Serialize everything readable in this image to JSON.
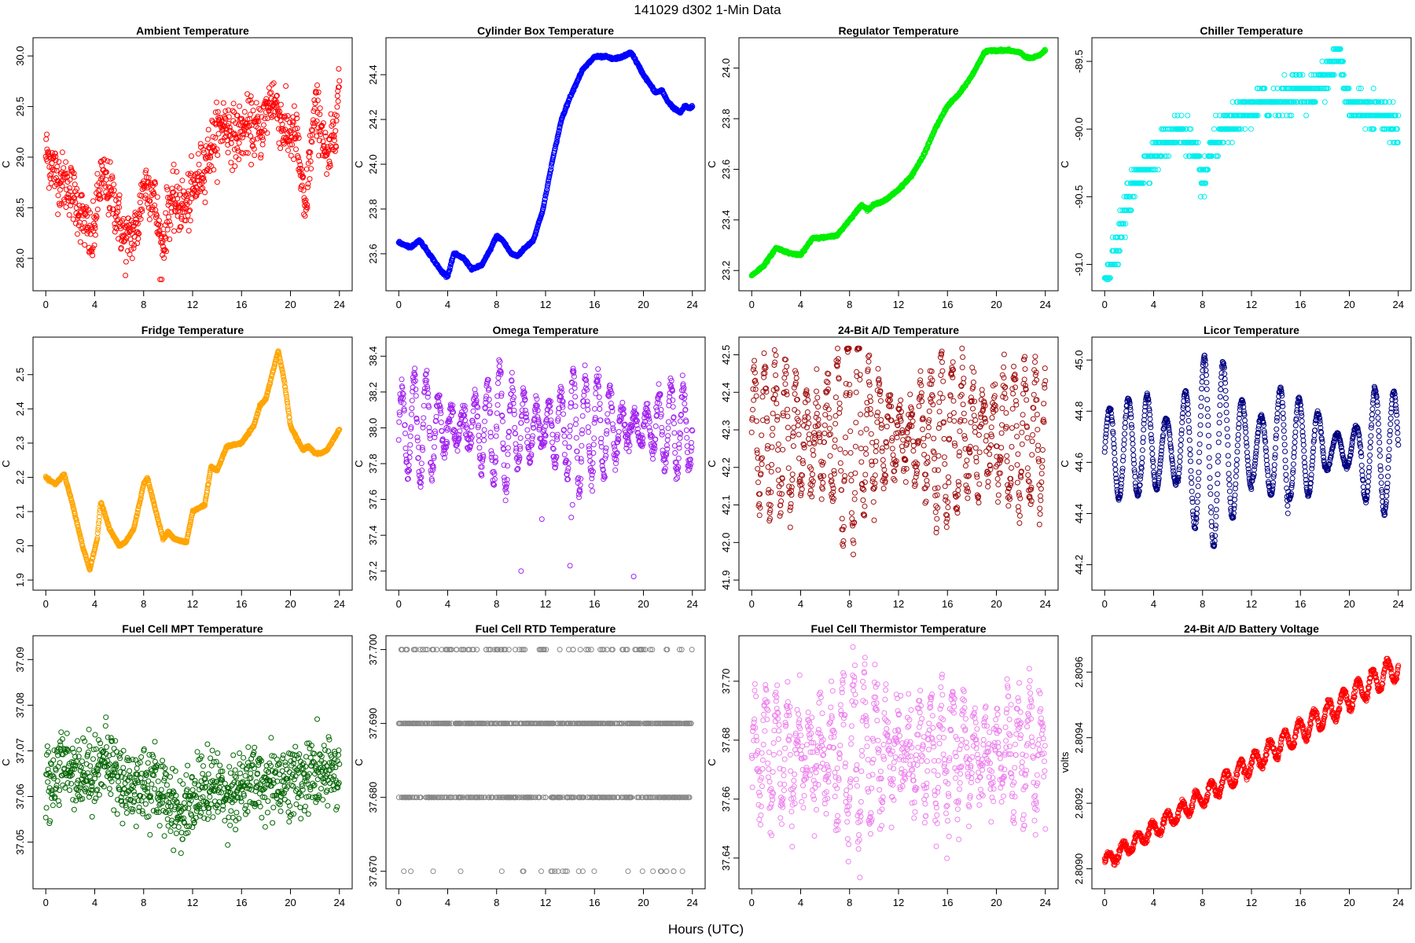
{
  "figure": {
    "title": "141029   d302   1-Min Data",
    "xlabel": "Hours (UTC)"
  },
  "chart_data": [
    {
      "type": "scatter",
      "title": "Ambient Temperature",
      "ylabel": "C",
      "color": "#ff0000",
      "xlim": [
        0,
        24
      ],
      "ylim": [
        27.78,
        30.08
      ],
      "xticks": [
        "0",
        "4",
        "8",
        "12",
        "16",
        "20",
        "24"
      ],
      "yticks": [
        "28.0",
        "28.5",
        "29.0",
        "29.5",
        "30.0"
      ],
      "ytick_values": [
        28.0,
        28.5,
        29.0,
        29.5,
        30.0
      ],
      "x": [
        0,
        1,
        2,
        3,
        3.8,
        4.5,
        5.5,
        6.5,
        7.5,
        8,
        8.8,
        9.5,
        10,
        10.5,
        11.5,
        12.5,
        13.5,
        14.5,
        15.5,
        16.5,
        17.5,
        18.5,
        19,
        19.5,
        20.5,
        21.2,
        21.5,
        22,
        22.5,
        23,
        23.5,
        24
      ],
      "y": [
        29.05,
        28.8,
        28.7,
        28.4,
        28.15,
        28.8,
        28.6,
        28.15,
        28.3,
        28.75,
        28.65,
        28.05,
        28.5,
        28.55,
        28.5,
        28.8,
        29.1,
        29.35,
        29.2,
        29.3,
        29.25,
        29.6,
        29.45,
        29.25,
        29.2,
        28.4,
        28.9,
        29.45,
        29.35,
        28.9,
        29.2,
        29.75
      ],
      "spread": 0.28
    },
    {
      "type": "scatter",
      "title": "Cylinder Box Temperature",
      "ylabel": "C",
      "color": "#0000ff",
      "xlim": [
        0,
        24
      ],
      "ylim": [
        23.48,
        24.52
      ],
      "xticks": [
        "0",
        "4",
        "8",
        "12",
        "16",
        "20",
        "24"
      ],
      "yticks": [
        "23.6",
        "23.8",
        "24.0",
        "24.2",
        "24.4"
      ],
      "ytick_values": [
        23.6,
        23.8,
        24.0,
        24.2,
        24.4
      ],
      "x": [
        0,
        1,
        1.7,
        2.5,
        3.5,
        4,
        4.5,
        5.3,
        6,
        6.8,
        7.5,
        8,
        8.5,
        9.2,
        9.7,
        10.2,
        11,
        11.8,
        12.5,
        13.3,
        14,
        15,
        16,
        17,
        17.5,
        18.3,
        19,
        19.5,
        20,
        21,
        21.5,
        22,
        22.5,
        23,
        23.4,
        23.8,
        24
      ],
      "y": [
        23.65,
        23.63,
        23.66,
        23.6,
        23.52,
        23.5,
        23.6,
        23.58,
        23.53,
        23.55,
        23.62,
        23.68,
        23.66,
        23.6,
        23.59,
        23.62,
        23.66,
        23.8,
        24.0,
        24.2,
        24.3,
        24.42,
        24.48,
        24.48,
        24.47,
        24.48,
        24.5,
        24.45,
        24.4,
        24.32,
        24.33,
        24.28,
        24.25,
        24.23,
        24.26,
        24.25,
        24.26
      ],
      "spread": 0.005
    },
    {
      "type": "scatter",
      "title": "Regulator Temperature",
      "ylabel": "C",
      "color": "#00ee00",
      "xlim": [
        0,
        24
      ],
      "ylim": [
        23.16,
        24.08
      ],
      "xticks": [
        "0",
        "4",
        "8",
        "12",
        "16",
        "20",
        "24"
      ],
      "yticks": [
        "23.2",
        "23.4",
        "23.6",
        "23.8",
        "24.0"
      ],
      "ytick_values": [
        23.2,
        23.4,
        23.6,
        23.8,
        24.0
      ],
      "x": [
        0,
        1,
        2,
        3,
        4,
        5,
        6,
        7,
        8,
        9,
        9.5,
        10,
        11,
        12,
        13,
        14,
        15,
        16,
        17,
        18,
        19,
        19.5,
        20,
        21,
        22,
        22.5,
        23,
        23.5,
        24
      ],
      "y": [
        23.18,
        23.22,
        23.29,
        23.27,
        23.26,
        23.33,
        23.33,
        23.34,
        23.4,
        23.46,
        23.44,
        23.46,
        23.48,
        23.52,
        23.57,
        23.65,
        23.76,
        23.85,
        23.9,
        23.97,
        24.06,
        24.07,
        24.07,
        24.07,
        24.06,
        24.04,
        24.04,
        24.05,
        24.07
      ],
      "spread": 0.004
    },
    {
      "type": "scatter",
      "title": "Chiller Temperature",
      "ylabel": "C",
      "color": "#00eeee",
      "xlim": [
        0,
        24
      ],
      "ylim": [
        -91.12,
        -89.4
      ],
      "xticks": [
        "0",
        "4",
        "8",
        "12",
        "16",
        "20",
        "24"
      ],
      "yticks": [
        "-91.0",
        "-90.5",
        "-90.0",
        "-89.5"
      ],
      "ytick_values": [
        -91.0,
        -90.5,
        -90.0,
        -89.5
      ],
      "x": [
        0,
        0.5,
        1,
        1.5,
        2,
        2.5,
        3,
        4,
        5,
        6,
        7,
        7.8,
        8.2,
        8.5,
        9,
        10,
        11,
        12,
        13,
        14,
        15,
        16,
        17,
        18,
        18.8,
        19.2,
        19.6,
        20,
        21,
        22,
        23,
        24
      ],
      "y": [
        -91.1,
        -91.0,
        -90.9,
        -90.7,
        -90.5,
        -90.4,
        -90.3,
        -90.2,
        -90.1,
        -90.0,
        -90.1,
        -90.3,
        -90.4,
        -90.2,
        -90.1,
        -90.0,
        -89.9,
        -89.85,
        -89.8,
        -89.8,
        -89.75,
        -89.7,
        -89.75,
        -89.6,
        -89.5,
        -89.4,
        -89.7,
        -89.8,
        -89.85,
        -89.85,
        -89.9,
        -90.0
      ],
      "quantize": 0.1,
      "spread": 0.12
    },
    {
      "type": "scatter",
      "title": "Fridge Temperature",
      "ylabel": "C",
      "color": "#ffa500",
      "xlim": [
        0,
        24
      ],
      "ylim": [
        1.9,
        2.58
      ],
      "xticks": [
        "0",
        "4",
        "8",
        "12",
        "16",
        "20",
        "24"
      ],
      "yticks": [
        "1.9",
        "2.0",
        "2.1",
        "2.2",
        "2.3",
        "2.4",
        "2.5"
      ],
      "ytick_values": [
        1.9,
        2.0,
        2.1,
        2.2,
        2.3,
        2.4,
        2.5
      ],
      "x": [
        0,
        0.8,
        1.5,
        2.2,
        3,
        3.6,
        4.2,
        4.5,
        5.2,
        6,
        6.5,
        7.2,
        8,
        8.3,
        9,
        9.6,
        10,
        10.5,
        11.5,
        12,
        13,
        13.5,
        14,
        14.8,
        16,
        17,
        17.5,
        18,
        18.5,
        19,
        19.5,
        20,
        21,
        21.5,
        22,
        22.5,
        23,
        24
      ],
      "y": [
        2.2,
        2.18,
        2.21,
        2.12,
        2.0,
        1.93,
        2.02,
        2.13,
        2.05,
        2.0,
        2.01,
        2.05,
        2.18,
        2.2,
        2.1,
        2.02,
        2.04,
        2.02,
        2.01,
        2.1,
        2.12,
        2.23,
        2.22,
        2.29,
        2.3,
        2.35,
        2.41,
        2.43,
        2.5,
        2.57,
        2.48,
        2.35,
        2.28,
        2.29,
        2.27,
        2.27,
        2.28,
        2.34
      ],
      "spread": 0.003
    },
    {
      "type": "scatter",
      "title": "Omega Temperature",
      "ylabel": "C",
      "color": "#a020f0",
      "xlim": [
        0,
        24
      ],
      "ylim": [
        37.15,
        38.45
      ],
      "xticks": [
        "0",
        "4",
        "8",
        "12",
        "16",
        "20",
        "24"
      ],
      "yticks": [
        "37.2",
        "37.4",
        "37.6",
        "37.8",
        "38.0",
        "38.2",
        "38.4"
      ],
      "ytick_values": [
        37.2,
        37.4,
        37.6,
        37.8,
        38.0,
        38.2,
        38.4
      ],
      "wave": {
        "base": 38.0,
        "amp": [
          0.3,
          0.2,
          0.35,
          0.25,
          0.4,
          0.3,
          0.2,
          0.25
        ],
        "period": 1.0
      },
      "outliers": [
        [
          10,
          37.2
        ],
        [
          11.7,
          37.49
        ],
        [
          14,
          37.23
        ],
        [
          14.1,
          37.5
        ],
        [
          14.2,
          37.57
        ],
        [
          19.2,
          37.17
        ]
      ],
      "spread": 0.03
    },
    {
      "type": "scatter",
      "title": "24-Bit A/D Temperature",
      "ylabel": "C",
      "color": "#a01010",
      "xlim": [
        0,
        24
      ],
      "ylim": [
        41.9,
        42.52
      ],
      "xticks": [
        "0",
        "4",
        "8",
        "12",
        "16",
        "20",
        "24"
      ],
      "yticks": [
        "41.9",
        "42.0",
        "42.1",
        "42.2",
        "42.3",
        "42.4",
        "42.5"
      ],
      "ytick_values": [
        41.9,
        42.0,
        42.1,
        42.2,
        42.3,
        42.4,
        42.5
      ],
      "wave": {
        "base": 42.28,
        "amp": [
          0.2,
          0.25,
          0.3,
          0.2,
          0.18,
          0.22,
          0.26,
          0.2
        ],
        "period": 0.85
      },
      "spread": 0.03
    },
    {
      "type": "scatter",
      "title": "Licor Temperature",
      "ylabel": "C",
      "color": "#000080",
      "xlim": [
        0,
        24
      ],
      "ylim": [
        44.14,
        45.05
      ],
      "xticks": [
        "0",
        "4",
        "8",
        "12",
        "16",
        "20",
        "24"
      ],
      "yticks": [
        "44.2",
        "44.4",
        "44.6",
        "44.8",
        "45.0"
      ],
      "ytick_values": [
        44.2,
        44.4,
        44.6,
        44.8,
        45.0
      ],
      "wave": {
        "base": 44.65,
        "amp": [
          0.2,
          0.3,
          0.38,
          0.38,
          0.3,
          0.2,
          0.15,
          0.25
        ],
        "period": 1.55
      },
      "spread": 0.004
    },
    {
      "type": "scatter",
      "title": "Fuel Cell MPT Temperature",
      "ylabel": "C",
      "color": "#006400",
      "xlim": [
        0,
        24
      ],
      "ylim": [
        37.042,
        37.093
      ],
      "xticks": [
        "0",
        "4",
        "8",
        "12",
        "16",
        "20",
        "24"
      ],
      "yticks": [
        "37.05",
        "37.06",
        "37.07",
        "37.08",
        "37.09"
      ],
      "ytick_values": [
        37.05,
        37.06,
        37.07,
        37.08,
        37.09
      ],
      "x": [
        0,
        1,
        2,
        3,
        4,
        5,
        6,
        7,
        8,
        9,
        10,
        11,
        12,
        13,
        14,
        15,
        16,
        17,
        18,
        19,
        20,
        21,
        22,
        23,
        24
      ],
      "y": [
        37.062,
        37.066,
        37.067,
        37.065,
        37.066,
        37.068,
        37.064,
        37.062,
        37.063,
        37.062,
        37.06,
        37.056,
        37.06,
        37.062,
        37.062,
        37.061,
        37.062,
        37.063,
        37.063,
        37.064,
        37.063,
        37.064,
        37.065,
        37.064,
        37.066
      ],
      "spread": 0.008
    },
    {
      "type": "scatter",
      "title": "Fuel Cell RTD Temperature",
      "ylabel": "C",
      "color": "#888888",
      "xlim": [
        0,
        24
      ],
      "ylim": [
        37.669,
        37.7005
      ],
      "xticks": [
        "0",
        "4",
        "8",
        "12",
        "16",
        "20",
        "24"
      ],
      "yticks": [
        "37.670",
        "37.680",
        "37.690",
        "37.700"
      ],
      "ytick_values": [
        37.67,
        37.68,
        37.69,
        37.7
      ],
      "levels": [
        37.67,
        37.68,
        37.69,
        37.7
      ]
    },
    {
      "type": "scatter",
      "title": "Fuel Cell Thermistor Temperature",
      "ylabel": "C",
      "color": "#ee82ee",
      "xlim": [
        0,
        24
      ],
      "ylim": [
        37.633,
        37.712
      ],
      "xticks": [
        "0",
        "4",
        "8",
        "12",
        "16",
        "20",
        "24"
      ],
      "yticks": [
        "37.64",
        "37.66",
        "37.68",
        "37.70"
      ],
      "ytick_values": [
        37.64,
        37.66,
        37.68,
        37.7
      ],
      "wave": {
        "base": 37.675,
        "amp": [
          0.02,
          0.025,
          0.03,
          0.025,
          0.02,
          0.02,
          0.022,
          0.018
        ],
        "period": 0.9
      },
      "spread": 0.006
    },
    {
      "type": "scatter",
      "title": "24-Bit A/D Battery Voltage",
      "ylabel": "volts",
      "color": "#ff0000",
      "xlim": [
        0,
        24
      ],
      "ylim": [
        2.80897,
        2.80968
      ],
      "xticks": [
        "0",
        "4",
        "8",
        "12",
        "16",
        "20",
        "24"
      ],
      "yticks": [
        "2.8090",
        "2.8092",
        "2.8094",
        "2.8096"
      ],
      "ytick_values": [
        2.809,
        2.8092,
        2.8094,
        2.8096
      ],
      "trend": {
        "start": 2.80902,
        "end": 2.80962,
        "amp": 4e-05,
        "period": 1.2
      },
      "spread": 5e-06
    }
  ]
}
